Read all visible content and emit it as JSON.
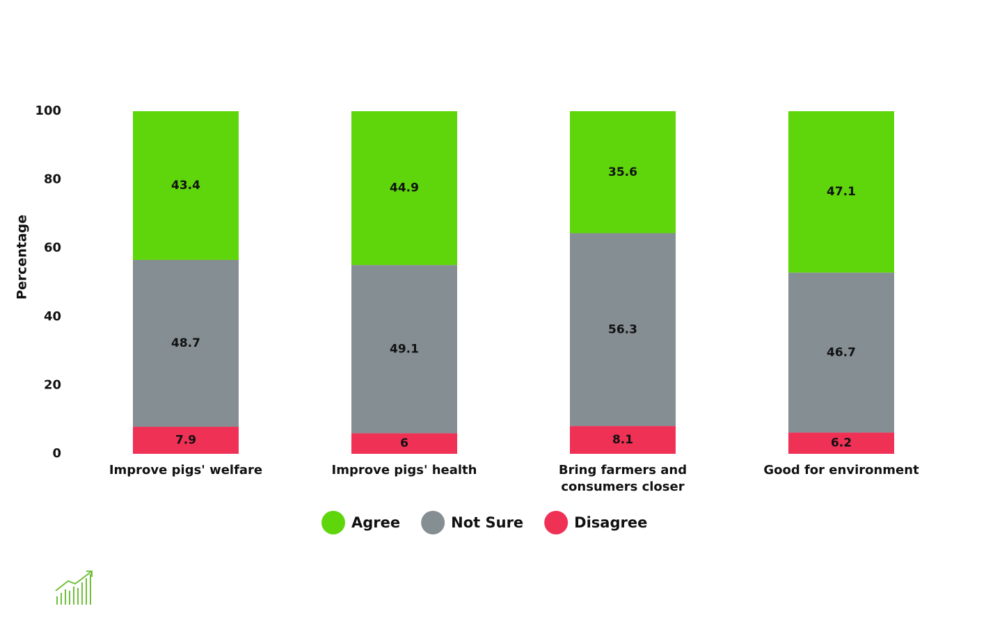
{
  "chart_data": {
    "type": "stacked_bar",
    "y_label": "Percentage",
    "categories": [
      "Improve pigs' welfare",
      "Improve pigs' health",
      "Bring farmers and consumers closer",
      "Good for environment"
    ],
    "series": [
      {
        "name": "Agree",
        "color": "#5fd60b",
        "values": [
          43.4,
          44.9,
          35.6,
          47.1
        ]
      },
      {
        "name": "Not Sure",
        "color": "#858e93",
        "values": [
          48.7,
          49.1,
          56.3,
          46.7
        ]
      },
      {
        "name": "Disagree",
        "color": "#f03156",
        "values": [
          7.9,
          6,
          8.1,
          6.2
        ]
      }
    ],
    "ylim": [
      0,
      100
    ],
    "yticks": [
      0,
      20,
      40,
      60,
      80,
      100
    ],
    "grid": false,
    "legend": "bottom"
  }
}
